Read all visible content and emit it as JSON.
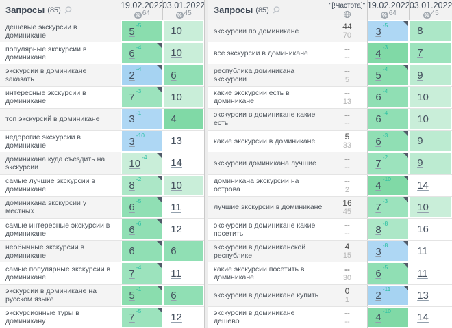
{
  "icons": {
    "percent": "%"
  },
  "colors": {
    "diff_text": "#2abfa3",
    "position_background": {
      "1": "#9dcff1",
      "2": "#a6d3f2",
      "3": "#aed7f4",
      "4": "#80d9a6",
      "5": "#8addae",
      "6": "#90dfb4",
      "7": "#9ce3bd",
      "8": "#ace7c7",
      "9": "#bcebd1",
      "10": "#c9eed9"
    }
  },
  "tables": [
    {
      "title": "Запросы",
      "count": "(85)",
      "columns": [
        {
          "date": "19.02.2022",
          "top_percent": "64"
        },
        {
          "date": "03.01.2022",
          "top_percent": "45"
        }
      ],
      "rows": [
        {
          "query": "дешевые экскурсии в доминикане",
          "cells": [
            {
              "pos": "5",
              "diff": "-5"
            },
            {
              "pos": "10"
            }
          ]
        },
        {
          "query": "популярные экскурсии в доминикане",
          "cells": [
            {
              "pos": "6",
              "diff": "-4",
              "flag": true
            },
            {
              "pos": "10"
            }
          ]
        },
        {
          "query": "экскурсии в доминикане заказать",
          "cells": [
            {
              "pos": "2",
              "diff": "-4",
              "flag": true
            },
            {
              "pos": "6"
            }
          ]
        },
        {
          "query": "интересные экскурсии в доминикане",
          "cells": [
            {
              "pos": "7",
              "diff": "-3",
              "flag": true
            },
            {
              "pos": "10"
            }
          ]
        },
        {
          "query": "топ экскурсий в доминикане",
          "cells": [
            {
              "pos": "3",
              "diff": "-1"
            },
            {
              "pos": "4"
            }
          ]
        },
        {
          "query": "недорогие экскурсии в доминикане",
          "cells": [
            {
              "pos": "3",
              "diff": "-10"
            },
            {
              "pos": "13"
            }
          ]
        },
        {
          "query": "доминикана куда съездить на экскурсии",
          "cells": [
            {
              "pos": "10",
              "diff": "-4",
              "flag": true
            },
            {
              "pos": "14"
            }
          ]
        },
        {
          "query": "самые лучшие экскурсии в доминикане",
          "cells": [
            {
              "pos": "8",
              "diff": "-2",
              "flag": true
            },
            {
              "pos": "10"
            }
          ]
        },
        {
          "query": "доминикана экскурсии у местных",
          "cells": [
            {
              "pos": "6",
              "diff": "-5",
              "flag": true
            },
            {
              "pos": "11"
            }
          ]
        },
        {
          "query": "самые интересные экскурсии в доминикане",
          "cells": [
            {
              "pos": "6",
              "diff": "-6",
              "flag": true
            },
            {
              "pos": "12"
            }
          ]
        },
        {
          "query": "необычные экскурсии в доминикане",
          "cells": [
            {
              "pos": "6",
              "flag": true
            },
            {
              "pos": "6"
            }
          ]
        },
        {
          "query": "самые популярные экскурсии в доминикане",
          "cells": [
            {
              "pos": "7",
              "diff": "-4",
              "flag": true
            },
            {
              "pos": "11"
            }
          ]
        },
        {
          "query": "экскурсии в доминикане на русском языке",
          "cells": [
            {
              "pos": "5",
              "diff": "-1",
              "flag": true
            },
            {
              "pos": "6"
            }
          ]
        },
        {
          "query": "экскурсионные туры в доминикану",
          "cells": [
            {
              "pos": "7",
              "diff": "-5",
              "flag": true
            },
            {
              "pos": "12"
            }
          ]
        }
      ]
    },
    {
      "title": "Запросы",
      "count": "(85)",
      "frequency_header": "\"[!Частота]\"",
      "columns": [
        {
          "date": "19.02.2022",
          "top_percent": "64"
        },
        {
          "date": "03.01.2022",
          "top_percent": "45"
        }
      ],
      "rows": [
        {
          "query": "экскурсии по доминикане",
          "freq": [
            "44",
            "70"
          ],
          "cells": [
            {
              "pos": "3",
              "diff": "-5",
              "flag": true
            },
            {
              "pos": "8"
            }
          ]
        },
        {
          "query": "все экскурсии в доминикане",
          "freq": [
            "--",
            "--"
          ],
          "cells": [
            {
              "pos": "4",
              "diff": "-3"
            },
            {
              "pos": "7"
            }
          ]
        },
        {
          "query": "республика доминикана экскурсии",
          "freq": [
            "--",
            "5"
          ],
          "cells": [
            {
              "pos": "5",
              "diff": "-4",
              "flag": true
            },
            {
              "pos": "9"
            }
          ]
        },
        {
          "query": "какие экскурсии есть в доминикане",
          "freq": [
            "--",
            "13"
          ],
          "cells": [
            {
              "pos": "6",
              "diff": "-4"
            },
            {
              "pos": "10"
            }
          ]
        },
        {
          "query": "экскурсии в доминикане какие есть",
          "freq": [
            "--",
            "--"
          ],
          "cells": [
            {
              "pos": "6",
              "diff": "-4"
            },
            {
              "pos": "10"
            }
          ]
        },
        {
          "query": "какие экскурсии в доминикане",
          "freq": [
            "5",
            "33"
          ],
          "cells": [
            {
              "pos": "6",
              "diff": "-3",
              "flag": true
            },
            {
              "pos": "9"
            }
          ]
        },
        {
          "query": "экскурсии доминикана лучшие",
          "freq": [
            "--",
            "--"
          ],
          "cells": [
            {
              "pos": "7",
              "diff": "-2",
              "flag": true
            },
            {
              "pos": "9"
            }
          ]
        },
        {
          "query": "доминикана экскурсии на острова",
          "freq": [
            "--",
            "2"
          ],
          "cells": [
            {
              "pos": "4",
              "diff": "-10",
              "flag": true
            },
            {
              "pos": "14"
            }
          ]
        },
        {
          "query": "лучшие экскурсии в доминикане",
          "freq": [
            "16",
            "45"
          ],
          "cells": [
            {
              "pos": "7",
              "diff": "-3",
              "flag": true
            },
            {
              "pos": "10"
            }
          ]
        },
        {
          "query": "экскурсии в доминикане какие посетить",
          "freq": [
            "--",
            "--"
          ],
          "cells": [
            {
              "pos": "8",
              "diff": "-8"
            },
            {
              "pos": "16"
            }
          ]
        },
        {
          "query": "экскурсии в доминиканской республике",
          "freq": [
            "4",
            "15"
          ],
          "cells": [
            {
              "pos": "3",
              "diff": "-8",
              "flag": true
            },
            {
              "pos": "11"
            }
          ]
        },
        {
          "query": "какие экскурсии посетить в доминикане",
          "freq": [
            "--",
            "30"
          ],
          "cells": [
            {
              "pos": "6",
              "diff": "-5",
              "flag": true
            },
            {
              "pos": "11"
            }
          ]
        },
        {
          "query": "экскурсии в доминикане купить",
          "freq": [
            "0",
            "1"
          ],
          "cells": [
            {
              "pos": "2",
              "diff": "-11",
              "flag": true
            },
            {
              "pos": "13"
            }
          ]
        },
        {
          "query": "экскурсии в доминикане дешево",
          "freq": [
            "--",
            "--"
          ],
          "cells": [
            {
              "pos": "4",
              "diff": "-10"
            },
            {
              "pos": "14"
            }
          ]
        }
      ]
    }
  ]
}
